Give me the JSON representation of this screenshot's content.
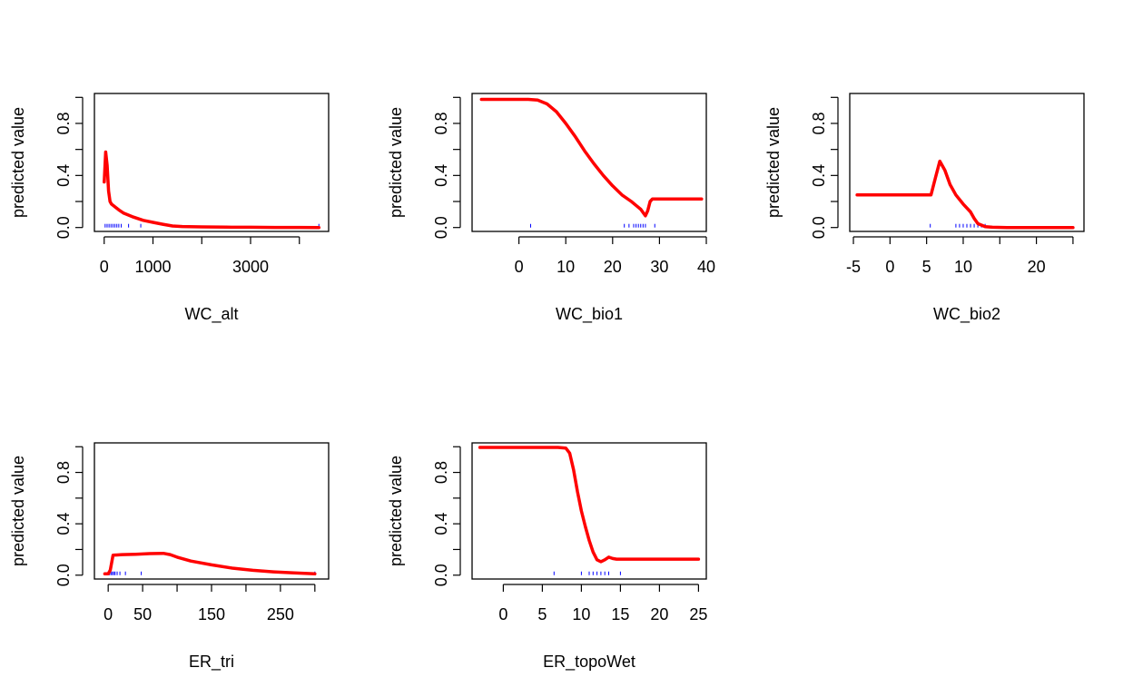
{
  "colors": {
    "curve": "#ff0000",
    "rug": "#0000ff",
    "axis": "#000000",
    "background": "#ffffff"
  },
  "chart_data": [
    {
      "type": "line",
      "xlabel": "WC_alt",
      "ylabel": "predicted value",
      "xlim": [
        -200,
        4600
      ],
      "ylim": [
        -0.03,
        1.03
      ],
      "xticks": [
        0,
        1000,
        2000,
        3000,
        4000
      ],
      "xtick_labels": [
        "0",
        "1000",
        "",
        "3000",
        ""
      ],
      "yticks": [
        0.0,
        0.2,
        0.4,
        0.6,
        0.8,
        1.0
      ],
      "ytick_labels": [
        "0.0",
        "",
        "0.4",
        "",
        "0.8",
        ""
      ],
      "series": [
        {
          "x": [
            0,
            30,
            60,
            90,
            120,
            150,
            200,
            300,
            400,
            600,
            800,
            1000,
            1200,
            1400,
            1600,
            2000,
            2500,
            3000,
            3500,
            4000,
            4400
          ],
          "y": [
            0.35,
            0.58,
            0.48,
            0.28,
            0.2,
            0.18,
            0.165,
            0.135,
            0.11,
            0.08,
            0.055,
            0.04,
            0.025,
            0.012,
            0.008,
            0.005,
            0.003,
            0.002,
            0.001,
            0.001,
            0.0
          ]
        }
      ],
      "rug": [
        20,
        60,
        100,
        140,
        180,
        220,
        260,
        300,
        350,
        500,
        750,
        4400
      ]
    },
    {
      "type": "line",
      "xlabel": "WC_bio1",
      "ylabel": "predicted value",
      "xlim": [
        -10,
        40
      ],
      "ylim": [
        -0.03,
        1.03
      ],
      "xticks": [
        0,
        10,
        20,
        30,
        40
      ],
      "xtick_labels": [
        "0",
        "10",
        "20",
        "30",
        "40"
      ],
      "yticks": [
        0.0,
        0.2,
        0.4,
        0.6,
        0.8,
        1.0
      ],
      "ytick_labels": [
        "0.0",
        "",
        "0.4",
        "",
        "0.8",
        ""
      ],
      "series": [
        {
          "x": [
            -8,
            0,
            2,
            4,
            6,
            8,
            10,
            12,
            14,
            16,
            18,
            20,
            22,
            24,
            25,
            26,
            27,
            27.5,
            28,
            28.5,
            29,
            32,
            36,
            39
          ],
          "y": [
            0.985,
            0.985,
            0.985,
            0.98,
            0.95,
            0.89,
            0.8,
            0.7,
            0.59,
            0.49,
            0.4,
            0.32,
            0.25,
            0.2,
            0.17,
            0.14,
            0.09,
            0.13,
            0.2,
            0.22,
            0.22,
            0.22,
            0.22,
            0.22
          ]
        }
      ],
      "rug": [
        2.5,
        22.5,
        23.5,
        24.5,
        25,
        25.5,
        26,
        26.5,
        27,
        29
      ]
    },
    {
      "type": "line",
      "xlabel": "WC_bio2",
      "ylabel": "predicted value",
      "xlim": [
        -5.5,
        26.5
      ],
      "ylim": [
        -0.03,
        1.03
      ],
      "xticks": [
        -5,
        0,
        5,
        10,
        15,
        20,
        25
      ],
      "xtick_labels": [
        "-5",
        "0",
        "5",
        "10",
        "",
        "20",
        ""
      ],
      "yticks": [
        0.0,
        0.2,
        0.4,
        0.6,
        0.8,
        1.0
      ],
      "ytick_labels": [
        "0.0",
        "",
        "0.4",
        "",
        "0.8",
        ""
      ],
      "series": [
        {
          "x": [
            -4.5,
            0,
            3,
            5.6,
            6.2,
            6.8,
            7.5,
            8.2,
            9,
            10,
            11,
            11.5,
            12,
            13,
            14,
            16,
            20,
            25
          ],
          "y": [
            0.25,
            0.25,
            0.25,
            0.25,
            0.38,
            0.51,
            0.44,
            0.33,
            0.25,
            0.18,
            0.12,
            0.07,
            0.03,
            0.006,
            0.002,
            0.0,
            0.0,
            0.0
          ]
        }
      ],
      "rug": [
        5.5,
        9,
        9.5,
        10,
        10.5,
        11,
        11.5,
        12,
        12.5,
        13
      ]
    },
    {
      "type": "line",
      "xlabel": "ER_tri",
      "ylabel": "predicted value",
      "xlim": [
        -20,
        320
      ],
      "ylim": [
        -0.03,
        1.03
      ],
      "xticks": [
        0,
        50,
        100,
        150,
        200,
        250,
        300
      ],
      "xtick_labels": [
        "0",
        "50",
        "",
        "150",
        "",
        "250",
        ""
      ],
      "yticks": [
        0.0,
        0.2,
        0.4,
        0.6,
        0.8,
        1.0
      ],
      "ytick_labels": [
        "0.0",
        "",
        "0.4",
        "",
        "0.8",
        ""
      ],
      "series": [
        {
          "x": [
            -5,
            0,
            3,
            7,
            20,
            40,
            60,
            80,
            90,
            100,
            120,
            150,
            180,
            210,
            240,
            270,
            300
          ],
          "y": [
            0.01,
            0.01,
            0.04,
            0.155,
            0.16,
            0.163,
            0.168,
            0.17,
            0.16,
            0.14,
            0.11,
            0.08,
            0.055,
            0.038,
            0.026,
            0.017,
            0.01
          ]
        }
      ],
      "rug": [
        2,
        4,
        6,
        8,
        10,
        13,
        17,
        25,
        48,
        300
      ]
    },
    {
      "type": "line",
      "xlabel": "ER_topoWet",
      "ylabel": "predicted value",
      "xlim": [
        -4,
        26
      ],
      "ylim": [
        -0.03,
        1.03
      ],
      "xticks": [
        0,
        5,
        10,
        15,
        20,
        25
      ],
      "xtick_labels": [
        "0",
        "5",
        "10",
        "15",
        "20",
        "25"
      ],
      "yticks": [
        0.0,
        0.2,
        0.4,
        0.6,
        0.8,
        1.0
      ],
      "ytick_labels": [
        "0.0",
        "",
        "0.4",
        "",
        "0.8",
        ""
      ],
      "series": [
        {
          "x": [
            -3,
            0,
            4,
            7,
            8,
            8.5,
            9,
            9.5,
            10,
            10.5,
            11,
            11.5,
            12,
            12.5,
            13,
            13.5,
            14,
            14.5,
            15,
            17,
            20,
            25
          ],
          "y": [
            0.995,
            0.995,
            0.995,
            0.995,
            0.99,
            0.95,
            0.82,
            0.65,
            0.5,
            0.38,
            0.27,
            0.18,
            0.12,
            0.105,
            0.12,
            0.14,
            0.13,
            0.125,
            0.125,
            0.125,
            0.125,
            0.125
          ]
        }
      ],
      "rug": [
        6.5,
        10,
        11,
        11.5,
        12,
        12.5,
        13,
        13.5,
        15
      ]
    }
  ]
}
